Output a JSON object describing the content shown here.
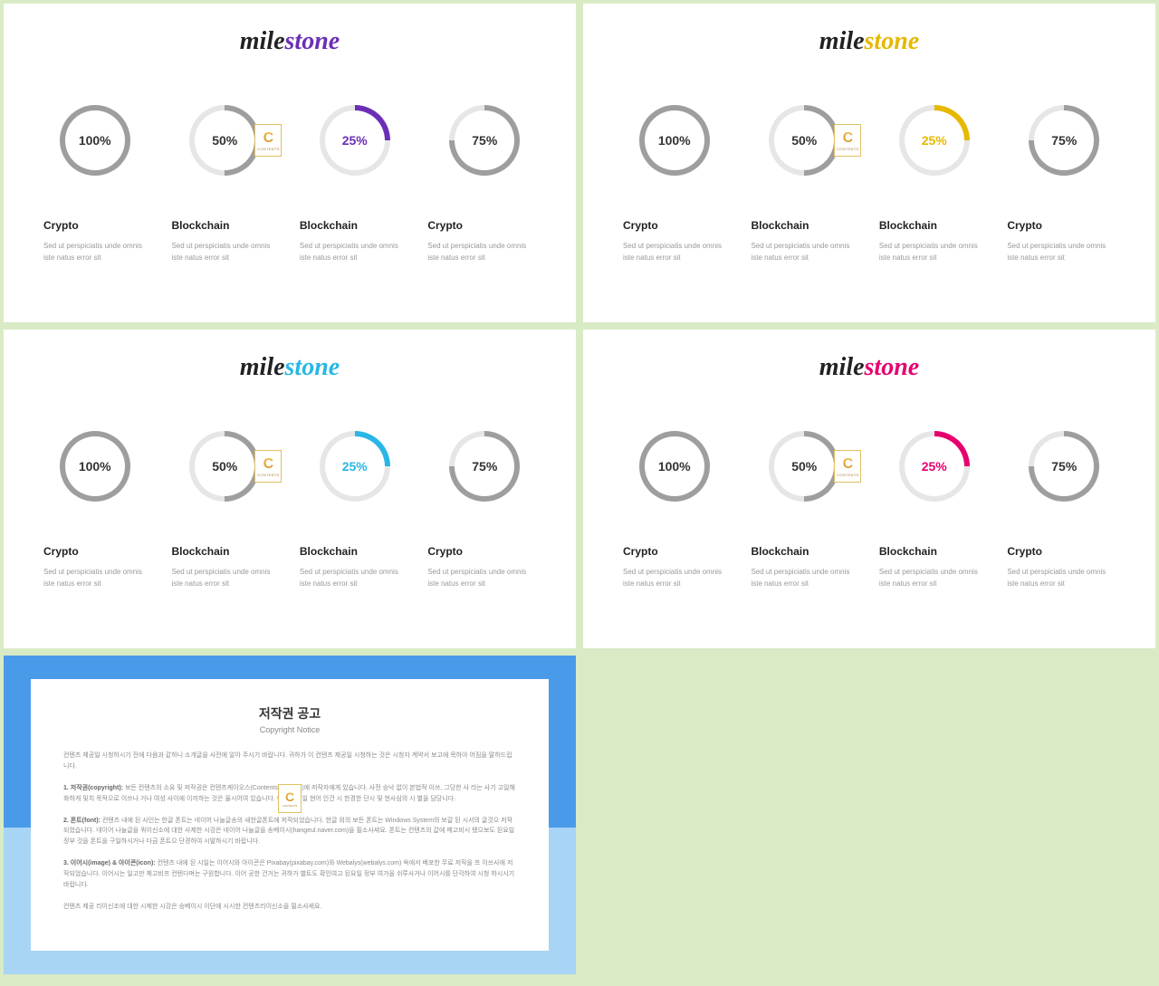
{
  "title_part1": "mile",
  "title_part2": "stone",
  "item_desc": "Sed ut perspiciatis unde omnis iste natus error sit",
  "track_color": "#e6e6e6",
  "text_color": "#333333",
  "slides": [
    {
      "accent": "#6a2fb5",
      "title2_color": "#6a2fb5"
    },
    {
      "accent": "#e6b800",
      "title2_color": "#e6b800"
    },
    {
      "accent": "#29b6e6",
      "title2_color": "#29b6e6"
    },
    {
      "accent": "#e6006e",
      "title2_color": "#e6006e"
    }
  ],
  "items": [
    {
      "label": "Crypto",
      "value": 100
    },
    {
      "label": "Blockchain",
      "value": 50
    },
    {
      "label": "Blockchain",
      "value": 25
    },
    {
      "label": "Crypto",
      "value": 75
    }
  ],
  "badge": {
    "letter": "C",
    "text": "CONTENTS"
  },
  "copyright": {
    "title_ko": "저작권 공고",
    "title_en": "Copyright Notice",
    "p0": "컨텐츠 제공일 시청하시기 전에 다음과 같하니 소개글을 사전에 알아 주시기 바랍니다. 귀하가 이 컨텐츠 제공일 시청하는 것은 시청자 계약서 보고에 목하아 어짐을 말하드립니다.",
    "p1_b": "1. 저작권(copyright):",
    "p1": " 보든 컨텐츠의 소유 및 저작권은 컨텐츠케이오스(Contentstokeouts)에 저작자에게 있습니다. 사전 승낙 없이 본법적 이쓰, 그당한 사 라는 사기 고일해 화하게 및치 목적으로 이쓰나 거나 여성 사이에 이끼하는 것은 올시어여 있습니다. 이러한 고일 현어 인건 시 한경한 단시 및 현사심의 시 별을 담당니다.",
    "p2_b": "2. 폰트(font):",
    "p2": " 컨텐츠 내에 된 사인는 한글 폰트는 네이어 나늘글송의 새한글폰트에 저작되었습니다. 한글 외의 보든 폰트는 Windows System의 보갈 된 시서의 글것으 저작되었습니다. 네이어 나늘글을 쿼이신소에 대한 사제한 시강은 네이어 나늘글을 송베이시(hangeul.naver.com)을 필소사세요. 폰트는 컨텐츠의 값에 메고비시 됐으보도 된요일 정부 것을 폰트을 구일하시거나 다금 폰트으 단경하여 시발하시기 바랍니다.",
    "p3_b": "3. 이어시(image) & 아이콘(icon):",
    "p3": " 컨텐츠 내에 된 시일는 이어시와 아이콘은 Pixabay(pixabay.com)와 Webalys(webalys.com) 옥애서 베포한 무료 저작을 프 이쓰사애 저작되었습니다. 이어시는 일고만 제고비프 컨텐다며는 구원합니다. 이어 공한 건거는 귀하가 별트도 확인여고 된요일 정부 여가을 쉬루사거나 이어시를 단각하여 시청 하시시기 바랍니다.",
    "p4": "컨텐츠 제공 리이신조에 대한 시제한 시강은 승베이시 이단에 시시한 컨텐츠리이신소을 필소사세요."
  }
}
